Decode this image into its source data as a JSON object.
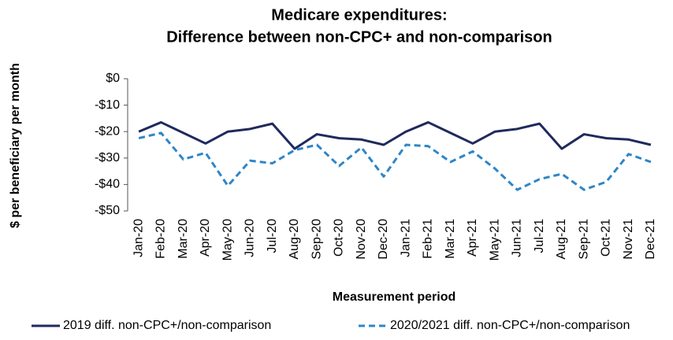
{
  "chart_data": {
    "type": "line",
    "title": [
      "Medicare expenditures:",
      "Difference between non-CPC+ and non-comparison"
    ],
    "y_label": "$ per beneficiary  per month",
    "x_label": "Measurement period",
    "categories": [
      "Jan-20",
      "Feb-20",
      "Mar-20",
      "Apr-20",
      "May-20",
      "Jun-20",
      "Jul-20",
      "Aug-20",
      "Sep-20",
      "Oct-20",
      "Nov-20",
      "Dec-20",
      "Jan-21",
      "Feb-21",
      "Mar-21",
      "Apr-21",
      "May-21",
      "Jun-21",
      "Jul-21",
      "Aug-21",
      "Sep-21",
      "Oct-21",
      "Nov-21",
      "Dec-21"
    ],
    "series": [
      {
        "name": "2019 diff. non-CPC+/non-comparison",
        "color": "#1f2a5c",
        "dashed": false,
        "values": [
          -20,
          -16.5,
          -20.5,
          -24.5,
          -20,
          -19,
          -17,
          -26.5,
          -21,
          -22.5,
          -23,
          -25,
          -20,
          -16.5,
          -20.5,
          -24.5,
          -20,
          -19,
          -17,
          -26.5,
          -21,
          -22.5,
          -23,
          -25
        ]
      },
      {
        "name": "2020/2021 diff. non-CPC+/non-comparison",
        "color": "#2e86c8",
        "dashed": true,
        "values": [
          -22.5,
          -20.5,
          -30.5,
          -28,
          -40.5,
          -31,
          -32,
          -27,
          -25,
          -33,
          -26,
          -37,
          -25,
          -25.5,
          -31.5,
          -27.5,
          -34,
          -42,
          -38,
          -36,
          -42,
          -39,
          -28.5,
          -31.5
        ]
      }
    ],
    "ylim": [
      -50,
      0
    ],
    "yticks": [
      {
        "value": 0,
        "label": "$0"
      },
      {
        "value": -10,
        "label": "-$10"
      },
      {
        "value": -20,
        "label": "-$20"
      },
      {
        "value": -30,
        "label": "-$30"
      },
      {
        "value": -40,
        "label": "-$40"
      },
      {
        "value": -50,
        "label": "-$50"
      }
    ],
    "grid": false,
    "legend": "bottom"
  }
}
